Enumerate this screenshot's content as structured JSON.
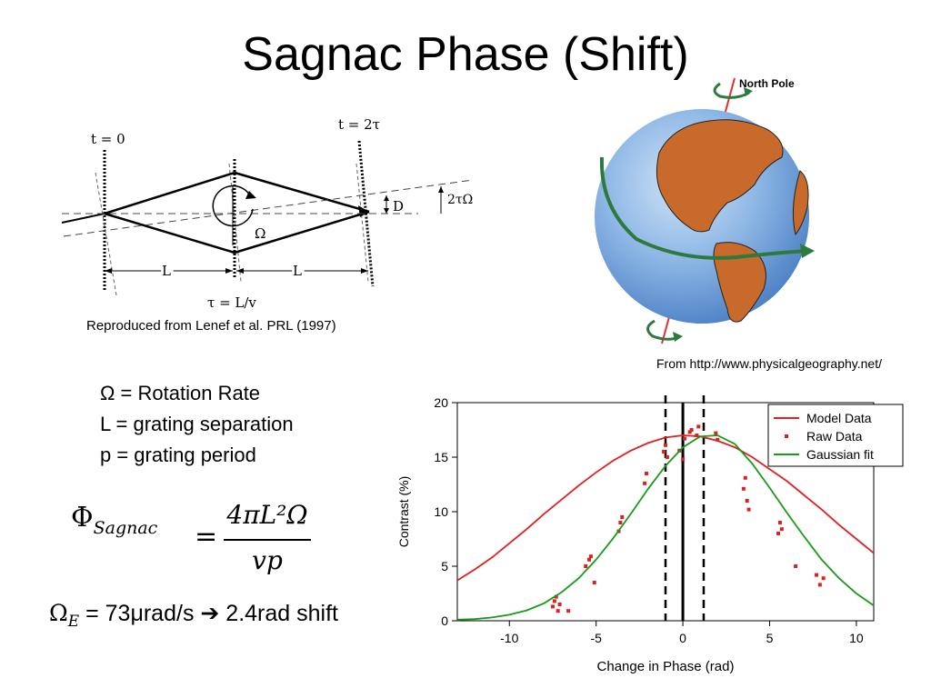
{
  "title": "Sagnac Phase (Shift)",
  "interferometer": {
    "label_t0": "t = 0",
    "label_t2": "t = 2τ",
    "label_omega": "Ω",
    "label_D": "D",
    "label_2to": "2τΩ",
    "label_L1": "L",
    "label_L2": "L",
    "label_tau": "τ = L/v",
    "caption": "Reproduced from Lenef et al. PRL (1997)"
  },
  "globe": {
    "label": "North Pole",
    "caption": "From http://www.physicalgeography.net/",
    "colors": {
      "ocean": "#6f9fd8",
      "land": "#c86a2b",
      "arrow": "#2e7a3e",
      "axis": "#e03030"
    }
  },
  "definitions": [
    "Ω = Rotation Rate",
    "L = grating separation",
    "p = grating period"
  ],
  "equation": {
    "lhs": "Φ",
    "lhs_sub": "Sagnac",
    "equals": "=",
    "numerator": "4πL²Ω",
    "denominator": "vp"
  },
  "bottom_line": {
    "omega": "Ω",
    "omega_sub": "E",
    "text": " = 73μrad/s ",
    "arrow": "➔",
    "result": " 2.4rad shift"
  },
  "chart_data": {
    "type": "scatter",
    "xlabel": "Change in Phase (rad)",
    "ylabel": "Contrast (%)",
    "xlim": [
      -13,
      11
    ],
    "ylim": [
      0,
      20
    ],
    "xticks": [
      -10,
      -5,
      0,
      5,
      10
    ],
    "yticks": [
      0,
      5,
      10,
      15,
      20
    ],
    "dashed_lines_x": [
      -1,
      1.2
    ],
    "solid_line_x": 0,
    "legend_position": "top-right",
    "series": [
      {
        "name": "Model Data",
        "kind": "line",
        "color": "#e02020",
        "x": [
          -13,
          -12,
          -11,
          -10,
          -9,
          -8,
          -7,
          -6,
          -5,
          -4,
          -3,
          -2,
          -1,
          0,
          1,
          2,
          3,
          4,
          5,
          6,
          7,
          8,
          9,
          10,
          11
        ],
        "y": [
          3.7,
          4.7,
          5.8,
          7.1,
          8.4,
          9.8,
          11.1,
          12.4,
          13.6,
          14.7,
          15.6,
          16.3,
          16.8,
          17.0,
          16.9,
          16.5,
          15.9,
          15.0,
          13.9,
          12.8,
          11.5,
          10.2,
          8.8,
          7.5,
          6.2
        ]
      },
      {
        "name": "Raw Data",
        "kind": "points",
        "color": "#e02020",
        "x": [
          -7.5,
          -7.4,
          -7.3,
          -7.2,
          -7.1,
          -6.6,
          -5.6,
          -5.4,
          -5.3,
          -5.1,
          -3.7,
          -3.6,
          -3.5,
          -2.2,
          -2.1,
          -1.1,
          -1.0,
          -0.9,
          -0.2,
          0.0,
          0.1,
          0.4,
          0.5,
          0.8,
          0.9,
          1.9,
          2.0,
          3.5,
          3.6,
          3.7,
          3.8,
          5.5,
          5.6,
          5.7,
          6.5,
          7.7,
          7.9,
          8.1
        ],
        "y": [
          1.3,
          1.8,
          2.2,
          0.9,
          1.5,
          0.9,
          5.0,
          5.6,
          5.9,
          3.5,
          8.2,
          9.0,
          9.5,
          12.6,
          13.5,
          15.5,
          16.1,
          15.0,
          15.6,
          14.8,
          16.7,
          17.3,
          17.5,
          17.0,
          17.8,
          17.2,
          16.6,
          12.1,
          13.1,
          11.0,
          10.2,
          8.0,
          9.0,
          8.4,
          5.0,
          4.2,
          3.3,
          3.9
        ]
      },
      {
        "name": "Gaussian fit",
        "kind": "line",
        "color": "#1a9a1a",
        "x": [
          -13,
          -12,
          -11,
          -10,
          -9,
          -8,
          -7,
          -6,
          -5,
          -4,
          -3,
          -2,
          -1,
          0,
          1,
          2,
          3,
          4,
          5,
          6,
          7,
          8,
          9,
          10,
          11
        ],
        "y": [
          0.1,
          0.15,
          0.3,
          0.55,
          0.95,
          1.6,
          2.6,
          3.9,
          5.6,
          7.6,
          9.8,
          12.1,
          14.2,
          15.9,
          16.9,
          17.0,
          16.2,
          14.4,
          12.2,
          9.9,
          7.7,
          5.6,
          3.9,
          2.5,
          1.4
        ]
      }
    ]
  }
}
